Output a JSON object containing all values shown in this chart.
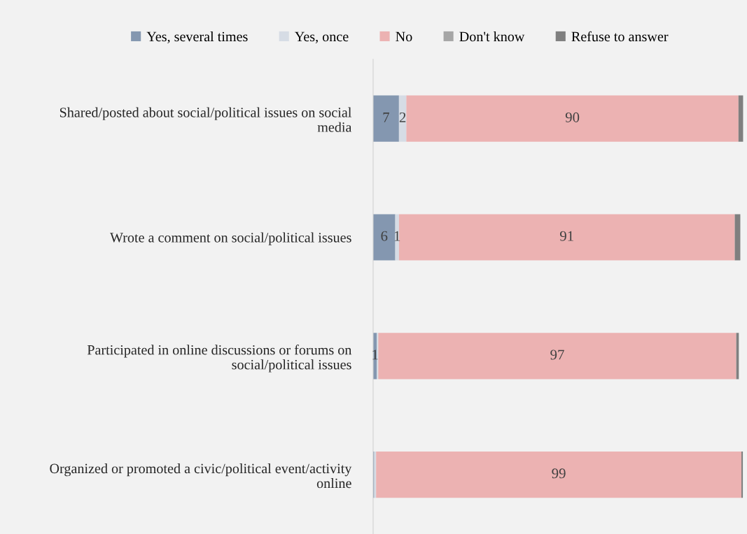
{
  "chart_data": {
    "type": "bar",
    "orientation": "horizontal",
    "stacked": true,
    "legend": "top",
    "categories": [
      "Shared/posted about social/political issues on social\nmedia",
      "Wrote a comment on social/political issues",
      "Participated in online discussions or forums on\nsocial/political issues",
      "Organized or promoted a civic/political event/activity\nonline"
    ],
    "series": [
      {
        "name": "Yes, several times",
        "color": "#8497b0",
        "values": [
          7,
          6,
          1,
          0.3
        ],
        "value_labels": [
          "7",
          "6",
          "1",
          null
        ]
      },
      {
        "name": "Yes, once",
        "color": "#d6dce5",
        "values": [
          2,
          1,
          0.4,
          0.5
        ],
        "value_labels": [
          "2",
          "1",
          null,
          null
        ]
      },
      {
        "name": "No",
        "color": "#ecb2b2",
        "values": [
          90,
          91,
          97,
          99
        ],
        "value_labels": [
          "90",
          "91",
          "97",
          "99"
        ]
      },
      {
        "name": "Don't know",
        "color": "#a6a6a6",
        "values": [
          0,
          0,
          0,
          0
        ],
        "value_labels": [
          null,
          null,
          null,
          null
        ]
      },
      {
        "name": "Refuse to answer",
        "color": "#7f7f7f",
        "values": [
          1.3,
          1.5,
          0.7,
          0.4
        ],
        "value_labels": [
          null,
          null,
          null,
          null
        ]
      }
    ]
  }
}
